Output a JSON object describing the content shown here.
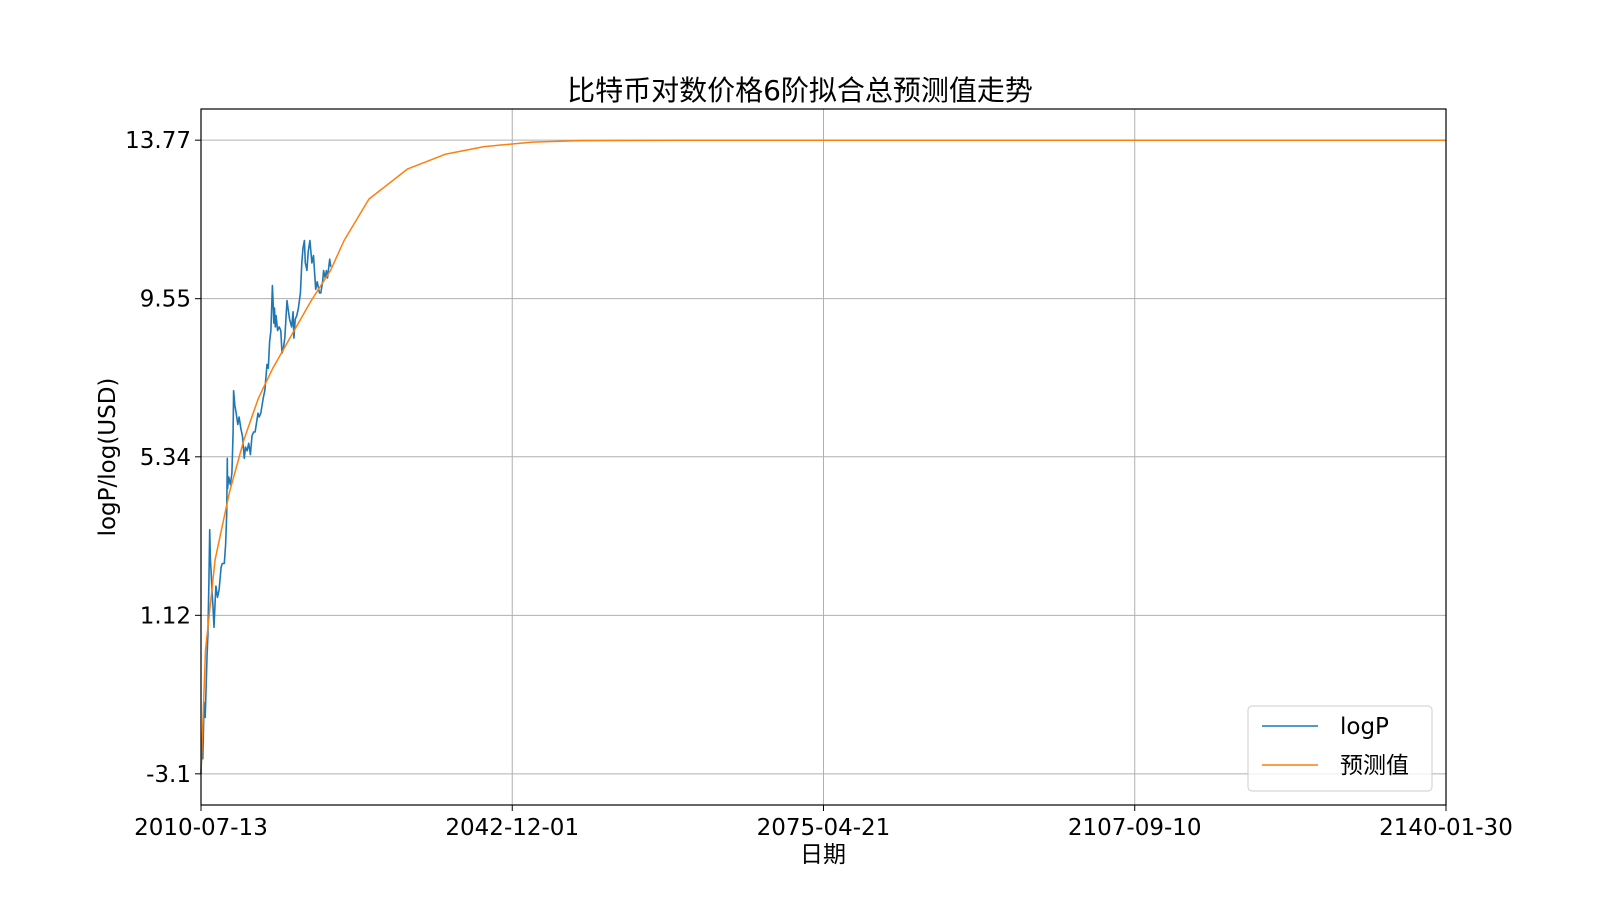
{
  "chart_data": {
    "type": "line",
    "title": "比特币对数价格6阶拟合总预测值走势",
    "xlabel": "日期",
    "ylabel": "logP/log(USD)",
    "x_range": [
      "2010-07-13",
      "2140-01-30"
    ],
    "ylim": [
      -3.93,
      14.6
    ],
    "x_ticks": [
      "2010-07-13",
      "2042-12-01",
      "2075-04-21",
      "2107-09-10",
      "2140-01-30"
    ],
    "y_ticks": [
      "-3.1",
      "1.12",
      "5.34",
      "9.55",
      "13.77"
    ],
    "y_tick_values": [
      -3.1,
      1.12,
      5.34,
      9.55,
      13.77
    ],
    "grid": true,
    "legend_position": "lower-right",
    "series": [
      {
        "name": "logP",
        "color": "#1f77b4",
        "points": [
          [
            "2010-07-13",
            -3.1
          ],
          [
            "2010-08-10",
            -2.4
          ],
          [
            "2010-09-20",
            -2.7
          ],
          [
            "2010-11-08",
            -1.2
          ],
          [
            "2010-12-20",
            -1.6
          ],
          [
            "2011-01-20",
            -0.9
          ],
          [
            "2011-02-25",
            0.0
          ],
          [
            "2011-04-01",
            0.6
          ],
          [
            "2011-05-10",
            2.0
          ],
          [
            "2011-06-08",
            3.4
          ],
          [
            "2011-07-05",
            2.6
          ],
          [
            "2011-08-01",
            2.3
          ],
          [
            "2011-09-01",
            1.8
          ],
          [
            "2011-10-10",
            1.4
          ],
          [
            "2011-11-18",
            0.8
          ],
          [
            "2011-12-20",
            1.3
          ],
          [
            "2012-02-01",
            1.9
          ],
          [
            "2012-04-01",
            1.6
          ],
          [
            "2012-06-01",
            1.8
          ],
          [
            "2012-08-15",
            2.4
          ],
          [
            "2012-10-01",
            2.5
          ],
          [
            "2012-12-15",
            2.5
          ],
          [
            "2013-02-01",
            3.0
          ],
          [
            "2013-03-15",
            3.8
          ],
          [
            "2013-04-09",
            5.3
          ],
          [
            "2013-04-20",
            4.5
          ],
          [
            "2013-06-01",
            4.8
          ],
          [
            "2013-08-01",
            4.6
          ],
          [
            "2013-10-01",
            4.9
          ],
          [
            "2013-11-15",
            6.0
          ],
          [
            "2013-12-04",
            7.1
          ],
          [
            "2014-01-20",
            6.7
          ],
          [
            "2014-03-10",
            6.5
          ],
          [
            "2014-05-10",
            6.2
          ],
          [
            "2014-07-01",
            6.4
          ],
          [
            "2014-09-01",
            6.1
          ],
          [
            "2014-11-01",
            5.9
          ],
          [
            "2015-01-14",
            5.3
          ],
          [
            "2015-03-01",
            5.6
          ],
          [
            "2015-05-01",
            5.5
          ],
          [
            "2015-07-01",
            5.7
          ],
          [
            "2015-09-01",
            5.4
          ],
          [
            "2015-11-04",
            5.9
          ],
          [
            "2016-01-01",
            6.0
          ],
          [
            "2016-03-01",
            6.0
          ],
          [
            "2016-06-18",
            6.5
          ],
          [
            "2016-08-01",
            6.4
          ],
          [
            "2016-10-01",
            6.5
          ],
          [
            "2016-12-31",
            6.9
          ],
          [
            "2017-03-01",
            7.1
          ],
          [
            "2017-05-25",
            7.8
          ],
          [
            "2017-07-15",
            7.7
          ],
          [
            "2017-09-01",
            8.4
          ],
          [
            "2017-10-20",
            8.7
          ],
          [
            "2017-12-17",
            9.9
          ],
          [
            "2018-01-15",
            9.4
          ],
          [
            "2018-02-06",
            8.9
          ],
          [
            "2018-03-05",
            9.3
          ],
          [
            "2018-04-06",
            8.8
          ],
          [
            "2018-05-05",
            9.1
          ],
          [
            "2018-07-01",
            8.7
          ],
          [
            "2018-09-01",
            8.8
          ],
          [
            "2018-11-01",
            8.7
          ],
          [
            "2018-12-15",
            8.1
          ],
          [
            "2019-02-01",
            8.2
          ],
          [
            "2019-04-02",
            8.5
          ],
          [
            "2019-06-26",
            9.5
          ],
          [
            "2019-08-01",
            9.3
          ],
          [
            "2019-10-01",
            9.0
          ],
          [
            "2019-12-17",
            8.8
          ],
          [
            "2020-02-13",
            9.2
          ],
          [
            "2020-03-12",
            8.5
          ],
          [
            "2020-05-01",
            9.0
          ],
          [
            "2020-07-01",
            9.1
          ],
          [
            "2020-09-01",
            9.3
          ],
          [
            "2020-11-15",
            9.7
          ],
          [
            "2021-01-08",
            10.5
          ],
          [
            "2021-02-21",
            10.9
          ],
          [
            "2021-04-14",
            11.1
          ],
          [
            "2021-05-19",
            10.5
          ],
          [
            "2021-06-22",
            10.4
          ],
          [
            "2021-07-20",
            10.3
          ],
          [
            "2021-09-07",
            10.8
          ],
          [
            "2021-11-10",
            11.1
          ],
          [
            "2022-01-24",
            10.5
          ],
          [
            "2022-03-28",
            10.7
          ],
          [
            "2022-05-12",
            10.2
          ],
          [
            "2022-06-18",
            9.8
          ],
          [
            "2022-08-15",
            10.0
          ],
          [
            "2022-11-09",
            9.7
          ],
          [
            "2022-12-31",
            9.7
          ],
          [
            "2023-03-10",
            10.0
          ],
          [
            "2023-04-14",
            10.3
          ],
          [
            "2023-06-15",
            10.1
          ],
          [
            "2023-08-01",
            10.3
          ],
          [
            "2023-09-11",
            10.1
          ],
          [
            "2023-11-01",
            10.4
          ],
          [
            "2023-12-05",
            10.6
          ],
          [
            "2024-01-15",
            10.4
          ]
        ]
      },
      {
        "name": "预测值",
        "color": "#ff7f0e",
        "points": [
          [
            "2010-07-13",
            -3.1
          ],
          [
            "2011-01-01",
            0.2
          ],
          [
            "2012-01-01",
            2.6
          ],
          [
            "2013-07-01",
            4.4
          ],
          [
            "2015-01-01",
            5.8
          ],
          [
            "2016-07-01",
            6.9
          ],
          [
            "2018-01-01",
            7.7
          ],
          [
            "2020-01-01",
            8.6
          ],
          [
            "2022-01-01",
            9.5
          ],
          [
            "2024-01-01",
            10.3
          ],
          [
            "2025-06-01",
            11.1
          ],
          [
            "2028-01-01",
            12.2
          ],
          [
            "2032-01-01",
            13.0
          ],
          [
            "2036-01-01",
            13.4
          ],
          [
            "2040-01-01",
            13.6
          ],
          [
            "2045-01-01",
            13.72
          ],
          [
            "2050-01-01",
            13.76
          ],
          [
            "2060-01-01",
            13.77
          ],
          [
            "2140-01-30",
            13.77
          ]
        ]
      }
    ]
  }
}
